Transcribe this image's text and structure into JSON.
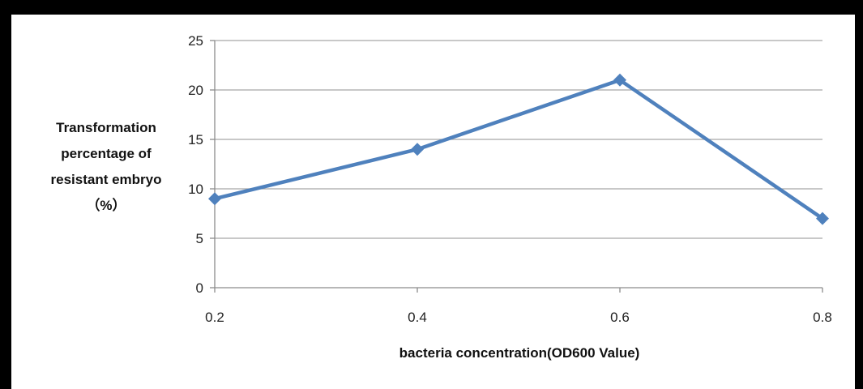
{
  "chart_data": {
    "type": "line",
    "x": [
      0.2,
      0.4,
      0.6,
      0.8
    ],
    "x_tick_labels": [
      "0.2",
      "0.4",
      "0.6",
      "0.8"
    ],
    "y_tick_labels": [
      "0",
      "5",
      "10",
      "15",
      "20",
      "25"
    ],
    "series": [
      {
        "values": [
          9,
          14,
          21,
          7
        ]
      }
    ],
    "title": "",
    "xlabel": "bacteria concentration(OD600  Value)",
    "ylabel_lines": [
      "Transformation",
      "percentage of",
      "resistant embryo",
      "（%）"
    ],
    "ylim": [
      0,
      25
    ],
    "ystep": 5,
    "grid": "horizontal",
    "legend": "none",
    "colors": {
      "line": "#4f81bd",
      "marker": "#4f81bd",
      "grid": "#a6a6a6",
      "axis": "#8c8c8c",
      "frame": "#000000",
      "plot_background": "#ffffff"
    },
    "marker": "diamond"
  }
}
